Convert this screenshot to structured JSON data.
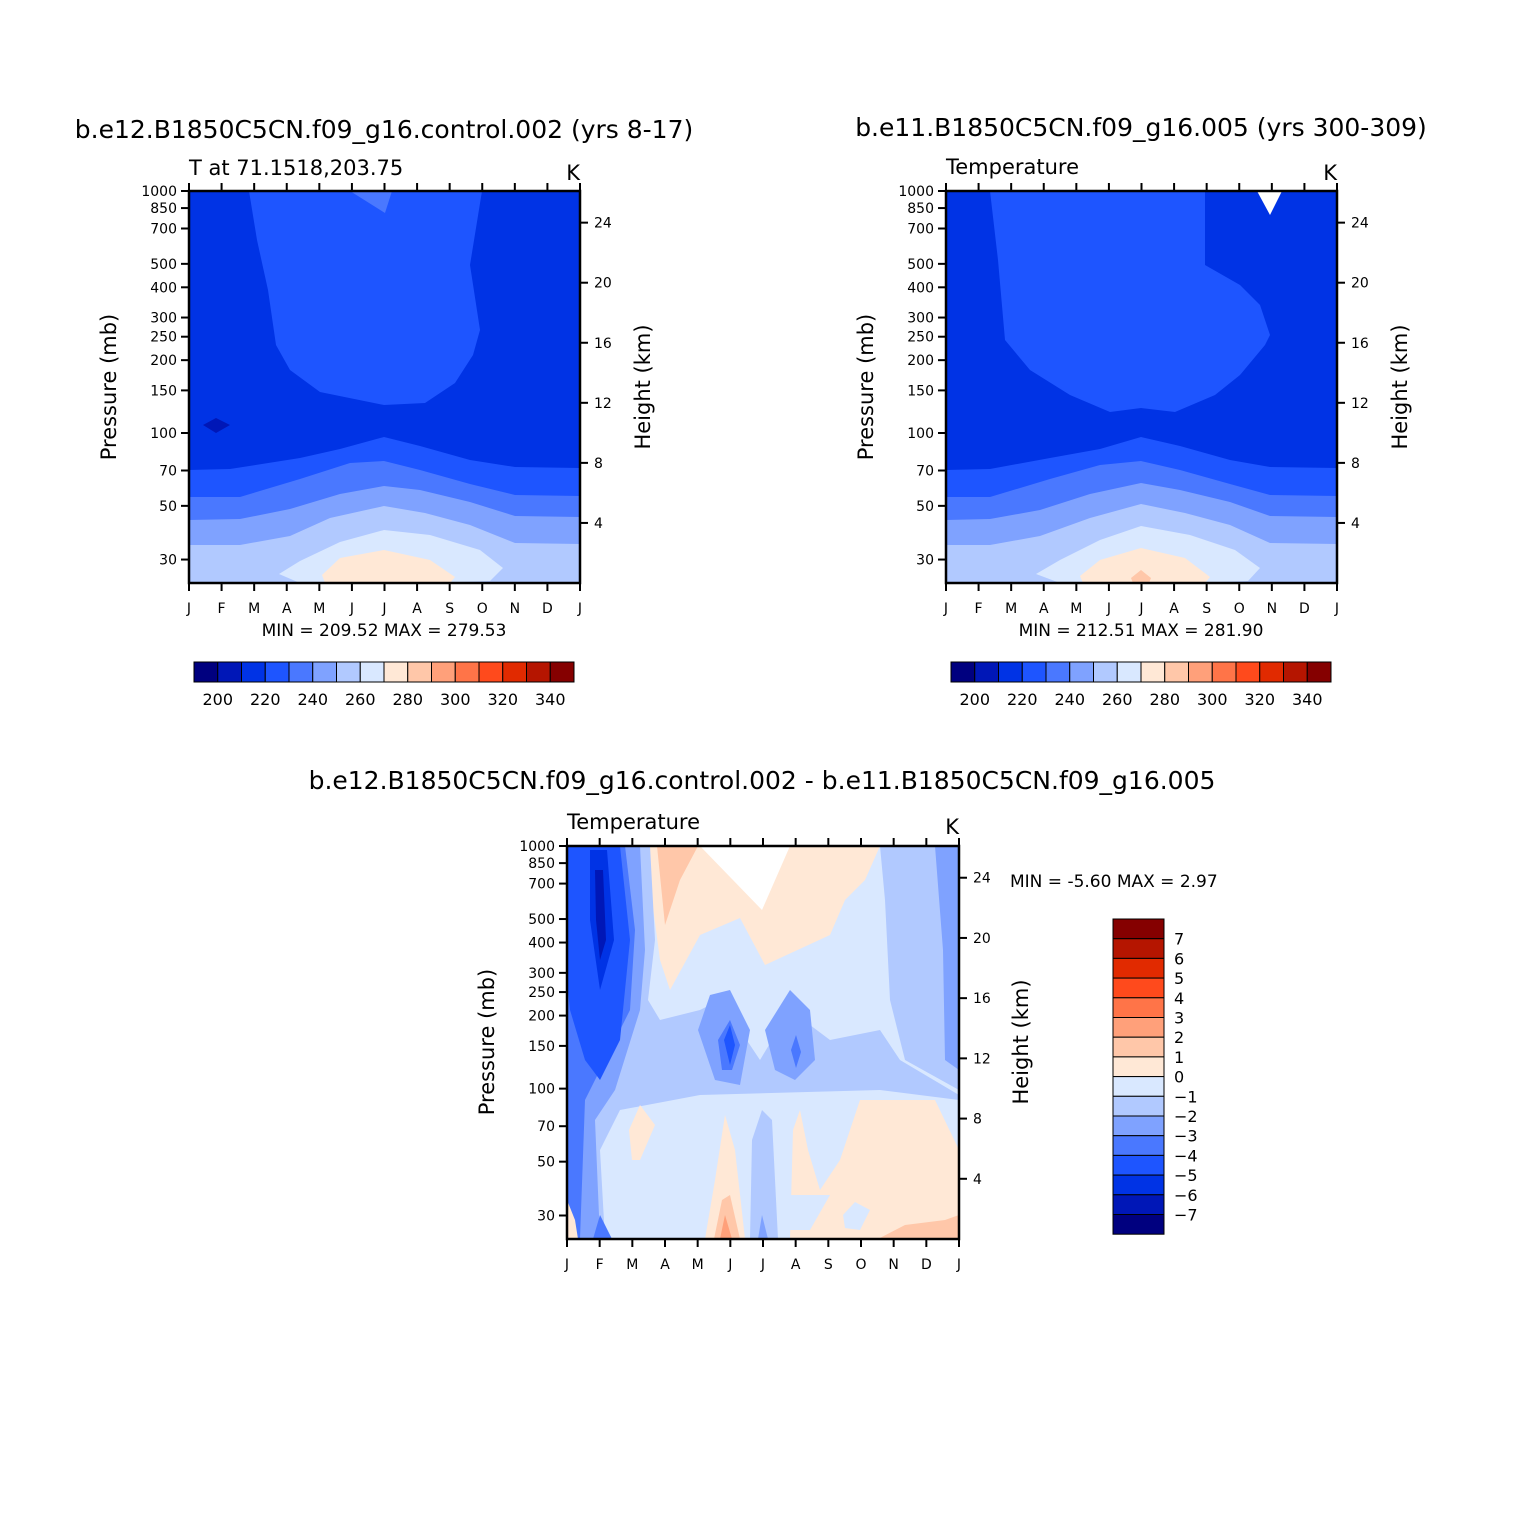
{
  "colors": {
    "t_palette": [
      "#00007f",
      "#0017b7",
      "#0033e5",
      "#1e55ff",
      "#4a78ff",
      "#7fa2ff",
      "#b1c9ff",
      "#d9e8ff",
      "#ffe8d6",
      "#ffc7a9",
      "#ffa07a",
      "#ff7448",
      "#ff4a1c",
      "#e12a00",
      "#b51500",
      "#850000"
    ],
    "d_palette": [
      "#00007f",
      "#0017b7",
      "#0033e5",
      "#1e55ff",
      "#4a78ff",
      "#7fa2ff",
      "#b1c9ff",
      "#d9e8ff",
      "#ffe8d6",
      "#ffc7a9",
      "#ffa07a",
      "#ff7448",
      "#ff4a1c",
      "#e12a00",
      "#b51500",
      "#850000"
    ]
  },
  "chart_data": [
    {
      "type": "contour",
      "title": "b.e12.B1850C5CN.f09_g16.control.002 (yrs 8-17)",
      "left_label": "T at 71.1518,203.75",
      "units": "K",
      "xlabel": "",
      "ylabel": "Pressure (mb)",
      "y2label": "Height (km)",
      "x_ticks": [
        "J",
        "F",
        "M",
        "A",
        "M",
        "J",
        "J",
        "A",
        "S",
        "O",
        "N",
        "D",
        "J"
      ],
      "y_ticks": [
        30,
        50,
        70,
        100,
        150,
        200,
        250,
        300,
        400,
        500,
        700,
        850,
        1000
      ],
      "y_range": [
        1000,
        24
      ],
      "y_scale": "log",
      "y2_ticks": [
        4,
        8,
        12,
        16,
        20,
        24
      ],
      "stats": "MIN = 209.52 MAX = 279.53",
      "colorbar_labels": [
        "200",
        "220",
        "240",
        "260",
        "280",
        "300",
        "320",
        "340"
      ]
    },
    {
      "type": "contour",
      "title": "b.e11.B1850C5CN.f09_g16.005 (yrs 300-309)",
      "left_label": "Temperature",
      "units": "K",
      "xlabel": "",
      "ylabel": "Pressure (mb)",
      "y2label": "Height (km)",
      "x_ticks": [
        "J",
        "F",
        "M",
        "A",
        "M",
        "J",
        "J",
        "A",
        "S",
        "O",
        "N",
        "D",
        "J"
      ],
      "y_ticks": [
        30,
        50,
        70,
        100,
        150,
        200,
        250,
        300,
        400,
        500,
        700,
        850,
        1000
      ],
      "y_range": [
        1000,
        24
      ],
      "y_scale": "log",
      "y2_ticks": [
        4,
        8,
        12,
        16,
        20,
        24
      ],
      "stats": "MIN = 212.51 MAX = 281.90",
      "colorbar_labels": [
        "200",
        "220",
        "240",
        "260",
        "280",
        "300",
        "320",
        "340"
      ]
    },
    {
      "type": "contour",
      "title": "b.e12.B1850C5CN.f09_g16.control.002 - b.e11.B1850C5CN.f09_g16.005",
      "left_label": "Temperature",
      "units": "K",
      "xlabel": "",
      "ylabel": "Pressure (mb)",
      "y2label": "Height (km)",
      "x_ticks": [
        "J",
        "F",
        "M",
        "A",
        "M",
        "J",
        "J",
        "A",
        "S",
        "O",
        "N",
        "D",
        "J"
      ],
      "y_ticks": [
        30,
        50,
        70,
        100,
        150,
        200,
        250,
        300,
        400,
        500,
        700,
        850,
        1000
      ],
      "y_range": [
        1000,
        24
      ],
      "y_scale": "log",
      "y2_ticks": [
        4,
        8,
        12,
        16,
        20,
        24
      ],
      "stats": "MIN = -5.60 MAX = 2.97",
      "colorbar_labels": [
        "7",
        "6",
        "5",
        "4",
        "3",
        "2",
        "1",
        "0",
        "-1",
        "-2",
        "-3",
        "-4",
        "-5",
        "-6",
        "-7"
      ]
    }
  ]
}
